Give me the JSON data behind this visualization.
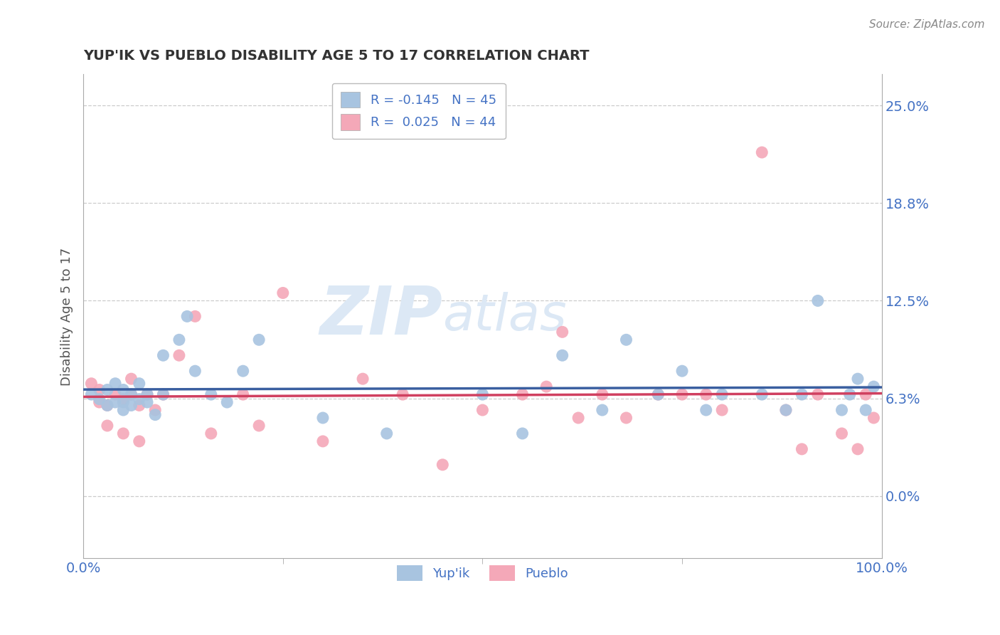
{
  "title": "YUP'IK VS PUEBLO DISABILITY AGE 5 TO 17 CORRELATION CHART",
  "source": "Source: ZipAtlas.com",
  "ylabel": "Disability Age 5 to 17",
  "xlim": [
    0,
    1
  ],
  "ylim": [
    -0.04,
    0.27
  ],
  "yticks": [
    0.0,
    0.0625,
    0.125,
    0.1875,
    0.25
  ],
  "ytick_labels": [
    "0.0%",
    "6.3%",
    "12.5%",
    "18.8%",
    "25.0%"
  ],
  "xticks": [
    0.0,
    1.0
  ],
  "xtick_labels": [
    "0.0%",
    "100.0%"
  ],
  "r_blue": -0.145,
  "n_blue": 45,
  "r_pink": 0.025,
  "n_pink": 44,
  "blue_color": "#a8c4e0",
  "pink_color": "#f4a8b8",
  "blue_line_color": "#3a5fa0",
  "pink_line_color": "#d04060",
  "title_color": "#333333",
  "tick_color": "#4472c4",
  "grid_color": "#cccccc",
  "watermark_color": "#dce8f5",
  "background_color": "#ffffff",
  "blue_scatter_x": [
    0.01,
    0.02,
    0.03,
    0.03,
    0.04,
    0.04,
    0.05,
    0.05,
    0.05,
    0.06,
    0.06,
    0.07,
    0.07,
    0.08,
    0.08,
    0.09,
    0.1,
    0.1,
    0.12,
    0.13,
    0.14,
    0.16,
    0.18,
    0.2,
    0.22,
    0.3,
    0.38,
    0.5,
    0.55,
    0.6,
    0.65,
    0.68,
    0.72,
    0.75,
    0.78,
    0.8,
    0.85,
    0.88,
    0.9,
    0.92,
    0.95,
    0.96,
    0.97,
    0.98,
    0.99
  ],
  "blue_scatter_y": [
    0.065,
    0.062,
    0.068,
    0.058,
    0.072,
    0.06,
    0.068,
    0.06,
    0.055,
    0.065,
    0.058,
    0.062,
    0.072,
    0.065,
    0.06,
    0.052,
    0.09,
    0.065,
    0.1,
    0.115,
    0.08,
    0.065,
    0.06,
    0.08,
    0.1,
    0.05,
    0.04,
    0.065,
    0.04,
    0.09,
    0.055,
    0.1,
    0.065,
    0.08,
    0.055,
    0.065,
    0.065,
    0.055,
    0.065,
    0.125,
    0.055,
    0.065,
    0.075,
    0.055,
    0.07
  ],
  "pink_scatter_x": [
    0.01,
    0.02,
    0.02,
    0.03,
    0.03,
    0.04,
    0.05,
    0.05,
    0.06,
    0.06,
    0.07,
    0.07,
    0.08,
    0.09,
    0.1,
    0.12,
    0.14,
    0.16,
    0.2,
    0.22,
    0.25,
    0.3,
    0.35,
    0.4,
    0.45,
    0.5,
    0.55,
    0.58,
    0.6,
    0.62,
    0.65,
    0.68,
    0.72,
    0.75,
    0.78,
    0.8,
    0.85,
    0.88,
    0.9,
    0.92,
    0.95,
    0.97,
    0.98,
    0.99
  ],
  "pink_scatter_y": [
    0.072,
    0.068,
    0.06,
    0.058,
    0.045,
    0.065,
    0.062,
    0.04,
    0.065,
    0.075,
    0.058,
    0.035,
    0.065,
    0.055,
    0.065,
    0.09,
    0.115,
    0.04,
    0.065,
    0.045,
    0.13,
    0.035,
    0.075,
    0.065,
    0.02,
    0.055,
    0.065,
    0.07,
    0.105,
    0.05,
    0.065,
    0.05,
    0.065,
    0.065,
    0.065,
    0.055,
    0.22,
    0.055,
    0.03,
    0.065,
    0.04,
    0.03,
    0.065,
    0.05
  ]
}
